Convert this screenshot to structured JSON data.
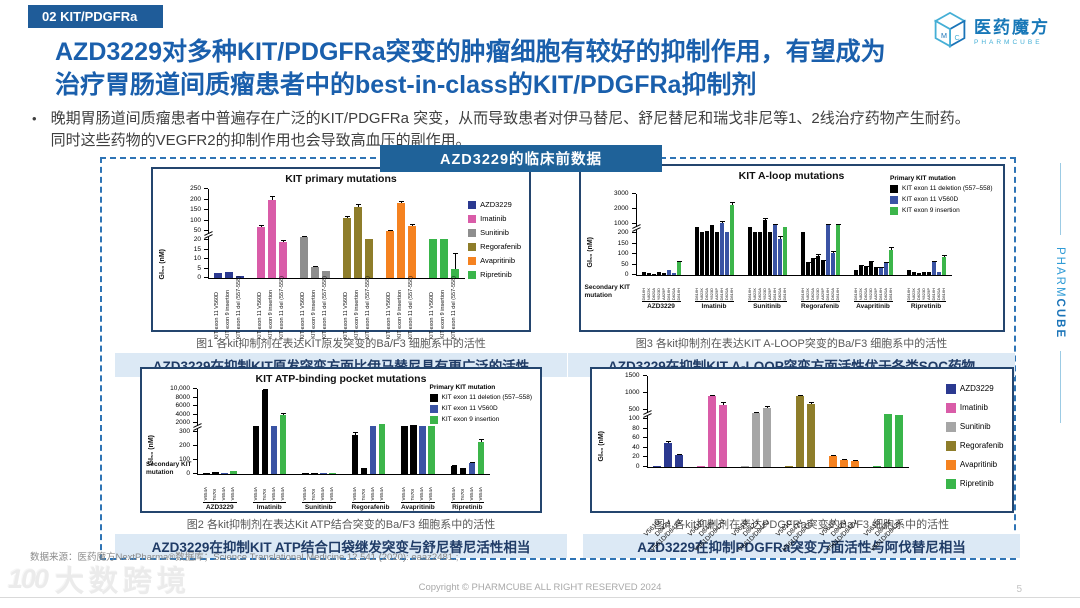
{
  "slide": {
    "section_label": "02 KIT/PDGFRa",
    "logo": {
      "name": "医药魔方",
      "subtitle": "PHARMCUBE"
    },
    "title_line1": "AZD3229对多种KIT/PDGFRa突变的肿瘤细胞有较好的抑制作用，有望成为",
    "title_line2": "治疗胃肠道间质瘤患者中的best-in-class的KIT/PDGFRa抑制剂",
    "bullet_dot": "•",
    "bullet_line1": "晚期胃肠道间质瘤患者中普遍存在广泛的KIT/PDGFRa 突变，从而导致患者对伊马替尼、舒尼替尼和瑞戈非尼等1、2线治疗药物产生耐药。",
    "bullet_line2": "同时这些药物的VEGFR2的抑制作用也会导致高血压的副作用。",
    "center_badge": "AZD3229的临床前数据",
    "side_text": {
      "light": "PHARM",
      "bold": "CUBE"
    },
    "footer": {
      "datasource": "数据来源：医药魔方NextPharma®数据库；Science Translational Medicine 12.541 (2020): eaaz2481.;",
      "copyright": "Copyright © PHARMCUBE ALL RIGHT RESERVED 2024",
      "page": "5"
    },
    "watermark": {
      "logo": "100",
      "text": "大数跨境"
    }
  },
  "colors": {
    "accent_blue": "#1F5C99",
    "title_blue": "#1A5FAC",
    "highlight_bg": "#DCE9F5",
    "dashed_border": "#2E74B5",
    "chart_border": "#24456E"
  },
  "figures": [
    {
      "caption": "图1 各kit抑制剂在表达KIT原发突变的Ba/F3 细胞系中的活性",
      "highlight": "AZD3229在抑制KIT原发突变方面比伊马替尼具有更广泛的活性"
    },
    {
      "caption": "图2 各kit抑制剂在表达Kit ATP结合突变的Ba/F3 细胞系中的活性",
      "highlight": "AZD3229在抑制KIT ATP结合口袋继发突变与舒尼替尼活性相当"
    },
    {
      "caption": "图3 各kit抑制剂在表达KIT A-LOOP突变的Ba/F3 细胞系中的活性",
      "highlight": "AZD3229在抑制KIT A-LOOP突变方面活性优于各类SOC药物"
    },
    {
      "caption": "图4 各kit抑制剂在表达PDGFRa突变的Ba/F3 细胞系中的活性",
      "highlight": "AZD3229在抑制PDGFRa突变方面活性与阿伐替尼相当"
    }
  ],
  "chart_data": [
    {
      "type": "bar",
      "title": "KIT primary mutations",
      "ylabel": "GI₅₀ (nM)",
      "axis": {
        "lower_ticks": [
          0,
          5,
          10,
          15,
          20
        ],
        "lower_max": 20,
        "upper_ticks": [
          50,
          100,
          150,
          200,
          250
        ],
        "upper_min": 50,
        "upper_max": 250
      },
      "legend": {
        "position": "right",
        "entries": [
          {
            "label": "AZD3229",
            "color": "#2B3990"
          },
          {
            "label": "Imatinib",
            "color": "#D95CA8"
          },
          {
            "label": "Sunitinib",
            "color": "#8E8E8E"
          },
          {
            "label": "Regorafenib",
            "color": "#8E7D2A"
          },
          {
            "label": "Avapritinib",
            "color": "#F58220"
          },
          {
            "label": "Ripretinib",
            "color": "#39B54A"
          }
        ]
      },
      "categories": [
        "KIT exon 11 V560D",
        "KIT exon 9 insertion",
        "KIT exon 11 del (557-558)"
      ],
      "groups": [
        {
          "name": "AZD3229",
          "color": "#2B3990",
          "values": [
            2.5,
            3,
            1
          ],
          "err": [
            0.3,
            0.4,
            0.2
          ]
        },
        {
          "name": "Imatinib",
          "color": "#D95CA8",
          "values": [
            70,
            200,
            19
          ],
          "err": [
            8,
            15,
            2
          ]
        },
        {
          "name": "Sunitinib",
          "color": "#8E8E8E",
          "values": [
            30,
            6,
            3.5
          ],
          "err": [
            3,
            0.5,
            0.4
          ]
        },
        {
          "name": "Regorafenib",
          "color": "#8E7D2A",
          "values": [
            110,
            165,
            22
          ],
          "err": [
            10,
            15,
            2
          ]
        },
        {
          "name": "Avapritinib",
          "color": "#F58220",
          "values": [
            50,
            185,
            75
          ],
          "err": [
            5,
            10,
            8
          ]
        },
        {
          "name": "Ripretinib",
          "color": "#39B54A",
          "values": [
            23,
            25,
            5
          ],
          "err": [
            2,
            2,
            8
          ]
        }
      ]
    },
    {
      "type": "bar",
      "title": "KIT ATP-binding pocket mutations",
      "ylabel": "GI₅₀ (nM)",
      "axis": {
        "lower_ticks": [
          0,
          100,
          200,
          300
        ],
        "lower_max": 300,
        "upper_ticks": [
          2000,
          4000,
          6000,
          8000,
          10000
        ],
        "upper_tick_labels": [
          "2000",
          "4000",
          "6000",
          "8000",
          "10,000"
        ],
        "upper_min": 2000,
        "upper_max": 10000
      },
      "legend": {
        "position": "top-right",
        "title": "Primary KIT mutation",
        "entries": [
          {
            "label": "KIT exon 11 deletion (557–558)",
            "color": "#000000"
          },
          {
            "label": "KIT exon 11 V560D",
            "color": "#3A53A4"
          },
          {
            "label": "KIT exon 9 insertion",
            "color": "#3CB54A"
          }
        ]
      },
      "side_label": "Secondary KIT mutation",
      "show_group_names": true,
      "categories": [
        "V654A",
        "T670I",
        "V654A",
        "V654A"
      ],
      "category_colors": [
        "#000000",
        "#000000",
        "#3A53A4",
        "#3CB54A"
      ],
      "groups": [
        {
          "name": "AZD3229",
          "values": [
            8,
            15,
            8,
            20
          ],
          "err": [
            1,
            2,
            1,
            2
          ]
        },
        {
          "name": "Imatinib",
          "values": [
            1400,
            9800,
            1500,
            4000
          ],
          "err": [
            100,
            200,
            100,
            300
          ]
        },
        {
          "name": "Sunitinib",
          "values": [
            5,
            5,
            8,
            10
          ],
          "err": [
            1,
            1,
            1,
            1
          ]
        },
        {
          "name": "Regorafenib",
          "values": [
            280,
            40,
            1500,
            1800
          ],
          "err": [
            20,
            5,
            100,
            150
          ]
        },
        {
          "name": "Avapritinib",
          "values": [
            1500,
            1700,
            1400,
            1500
          ],
          "err": [
            100,
            120,
            100,
            100
          ]
        },
        {
          "name": "Ripretinib",
          "values": [
            60,
            45,
            80,
            230
          ],
          "err": [
            6,
            5,
            8,
            20
          ]
        }
      ]
    },
    {
      "type": "bar",
      "title": "KIT A-loop mutations",
      "ylabel": "GI₅₀ (nM)",
      "axis": {
        "lower_ticks": [
          0,
          50,
          100,
          150,
          200
        ],
        "lower_max": 200,
        "upper_ticks": [
          1000,
          2000,
          3000
        ],
        "upper_min": 1000,
        "upper_max": 3000
      },
      "legend": {
        "position": "top-right",
        "title": "Primary KIT mutation",
        "entries": [
          {
            "label": "KIT exon 11 deletion (557–558)",
            "color": "#000000"
          },
          {
            "label": "KIT exon 11 V560D",
            "color": "#3A53A4"
          },
          {
            "label": "KIT exon 9 insertion",
            "color": "#3CB54A"
          }
        ]
      },
      "side_label": "Secondary KIT mutation",
      "show_group_names": true,
      "categories": [
        "D816H",
        "N822K",
        "D820A",
        "Y823D",
        "A829P",
        "D816H",
        "D820A",
        "D816H"
      ],
      "category_colors": [
        "#000000",
        "#000000",
        "#000000",
        "#000000",
        "#000000",
        "#3A53A4",
        "#3A53A4",
        "#3CB54A"
      ],
      "groups": [
        {
          "name": "AZD3229",
          "values": [
            15,
            8,
            5,
            15,
            8,
            25,
            8,
            60
          ],
          "err": [
            2,
            1,
            1,
            2,
            1,
            3,
            1,
            5
          ]
        },
        {
          "name": "Imatinib",
          "values": [
            700,
            260,
            350,
            900,
            260,
            1100,
            260,
            2300
          ],
          "err": [
            50,
            20,
            30,
            60,
            20,
            100,
            20,
            150
          ]
        },
        {
          "name": "Sunitinib",
          "values": [
            700,
            260,
            300,
            1300,
            260,
            950,
            170,
            700
          ],
          "err": [
            50,
            20,
            20,
            100,
            20,
            80,
            15,
            50
          ]
        },
        {
          "name": "Regorafenib",
          "values": [
            250,
            55,
            75,
            90,
            65,
            900,
            105,
            950
          ],
          "err": [
            20,
            5,
            8,
            10,
            8,
            80,
            10,
            80
          ]
        },
        {
          "name": "Avapritinib",
          "values": [
            25,
            45,
            40,
            60,
            35,
            35,
            55,
            120
          ],
          "err": [
            3,
            5,
            4,
            6,
            4,
            4,
            5,
            12
          ]
        },
        {
          "name": "Ripretinib",
          "values": [
            25,
            12,
            10,
            15,
            12,
            60,
            15,
            85
          ],
          "err": [
            3,
            2,
            1,
            2,
            2,
            6,
            2,
            8
          ]
        }
      ]
    },
    {
      "type": "bar",
      "title": "",
      "ylabel": "GI₅₀ (nM)",
      "axis": {
        "lower_ticks": [
          0,
          20,
          40,
          60,
          80,
          100
        ],
        "lower_max": 100,
        "upper_ticks": [
          500,
          1000,
          1500
        ],
        "upper_min": 500,
        "upper_max": 1500
      },
      "legend": {
        "position": "right",
        "entries": [
          {
            "label": "AZD3229",
            "color": "#2B3990"
          },
          {
            "label": "Imatinib",
            "color": "#D95CA8"
          },
          {
            "label": "Sunitinib",
            "color": "#A6A6A6"
          },
          {
            "label": "Regorafenib",
            "color": "#8E7D2A"
          },
          {
            "label": "Avapritinib",
            "color": "#F58220"
          },
          {
            "label": "Ripretinib",
            "color": "#39B54A"
          }
        ]
      },
      "categories": [
        "V561D",
        "D842V",
        "V561D/D842V"
      ],
      "groups": [
        {
          "name": "AZD3229",
          "color": "#2B3990",
          "values": [
            1,
            50,
            25
          ],
          "err": [
            0,
            4,
            3
          ]
        },
        {
          "name": "Imatinib",
          "color": "#D95CA8",
          "values": [
            2,
            900,
            650
          ],
          "err": [
            0,
            40,
            80
          ]
        },
        {
          "name": "Sunitinib",
          "color": "#A6A6A6",
          "values": [
            2,
            350,
            550
          ],
          "err": [
            0,
            60,
            70
          ]
        },
        {
          "name": "Regorafenib",
          "color": "#8E7D2A",
          "values": [
            2,
            900,
            670
          ],
          "err": [
            0,
            50,
            60
          ]
        },
        {
          "name": "Avapritinib",
          "color": "#F58220",
          "values": [
            22,
            15,
            12
          ],
          "err": [
            3,
            2,
            2
          ]
        },
        {
          "name": "Ripretinib",
          "color": "#39B54A",
          "values": [
            2,
            330,
            280
          ],
          "err": [
            0,
            20,
            25
          ]
        }
      ]
    }
  ]
}
